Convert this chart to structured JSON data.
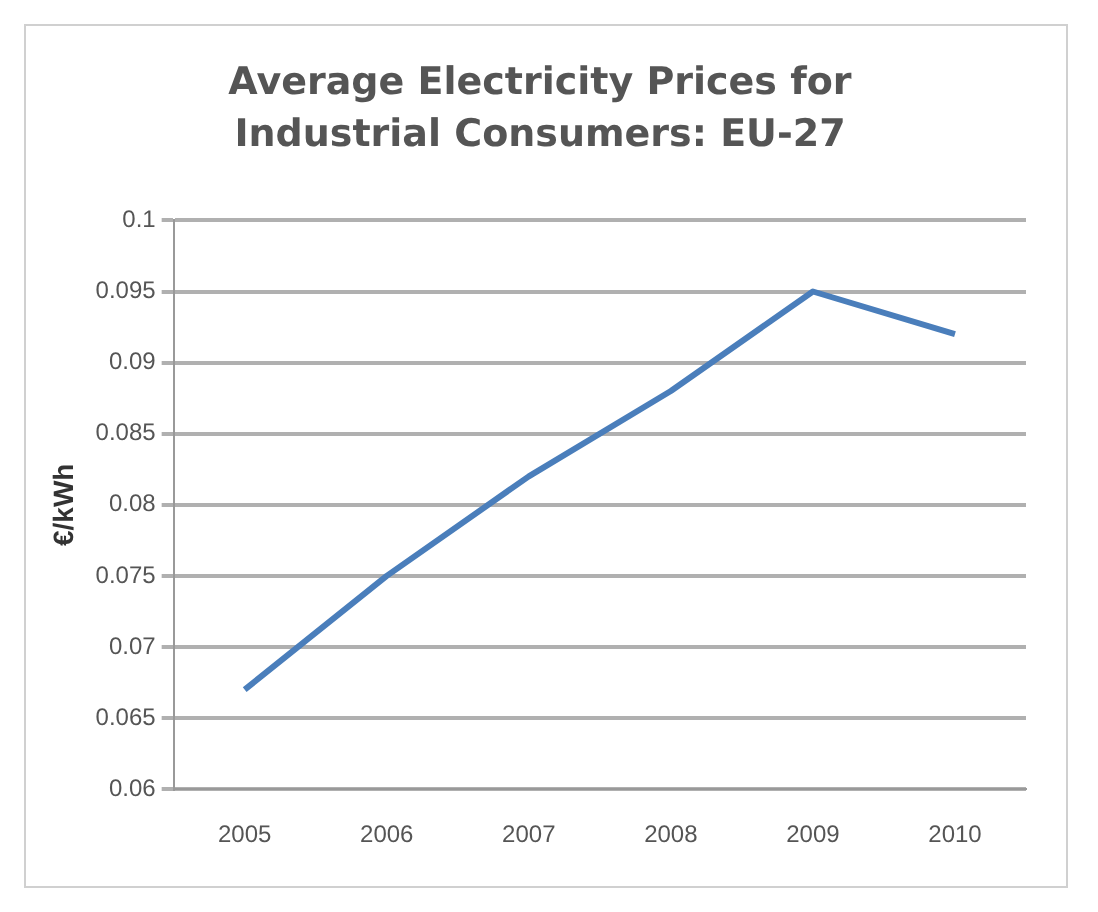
{
  "chart_data": {
    "type": "line",
    "title": "Average Electricity Prices for Industrial Consumers: EU-27",
    "ylabel": "€/kWh",
    "categories": [
      "2005",
      "2006",
      "2007",
      "2008",
      "2009",
      "2010"
    ],
    "series": [
      {
        "color": "#4a7ebb",
        "values": [
          0.067,
          0.075,
          0.082,
          0.088,
          0.095,
          0.092
        ]
      }
    ],
    "ylim": [
      0.06,
      0.1
    ],
    "yticks": [
      0.06,
      0.065,
      0.07,
      0.075,
      0.08,
      0.085,
      0.09,
      0.095,
      0.1
    ],
    "grid": "y",
    "legend": false,
    "marker": "none",
    "line_style": "solid"
  }
}
